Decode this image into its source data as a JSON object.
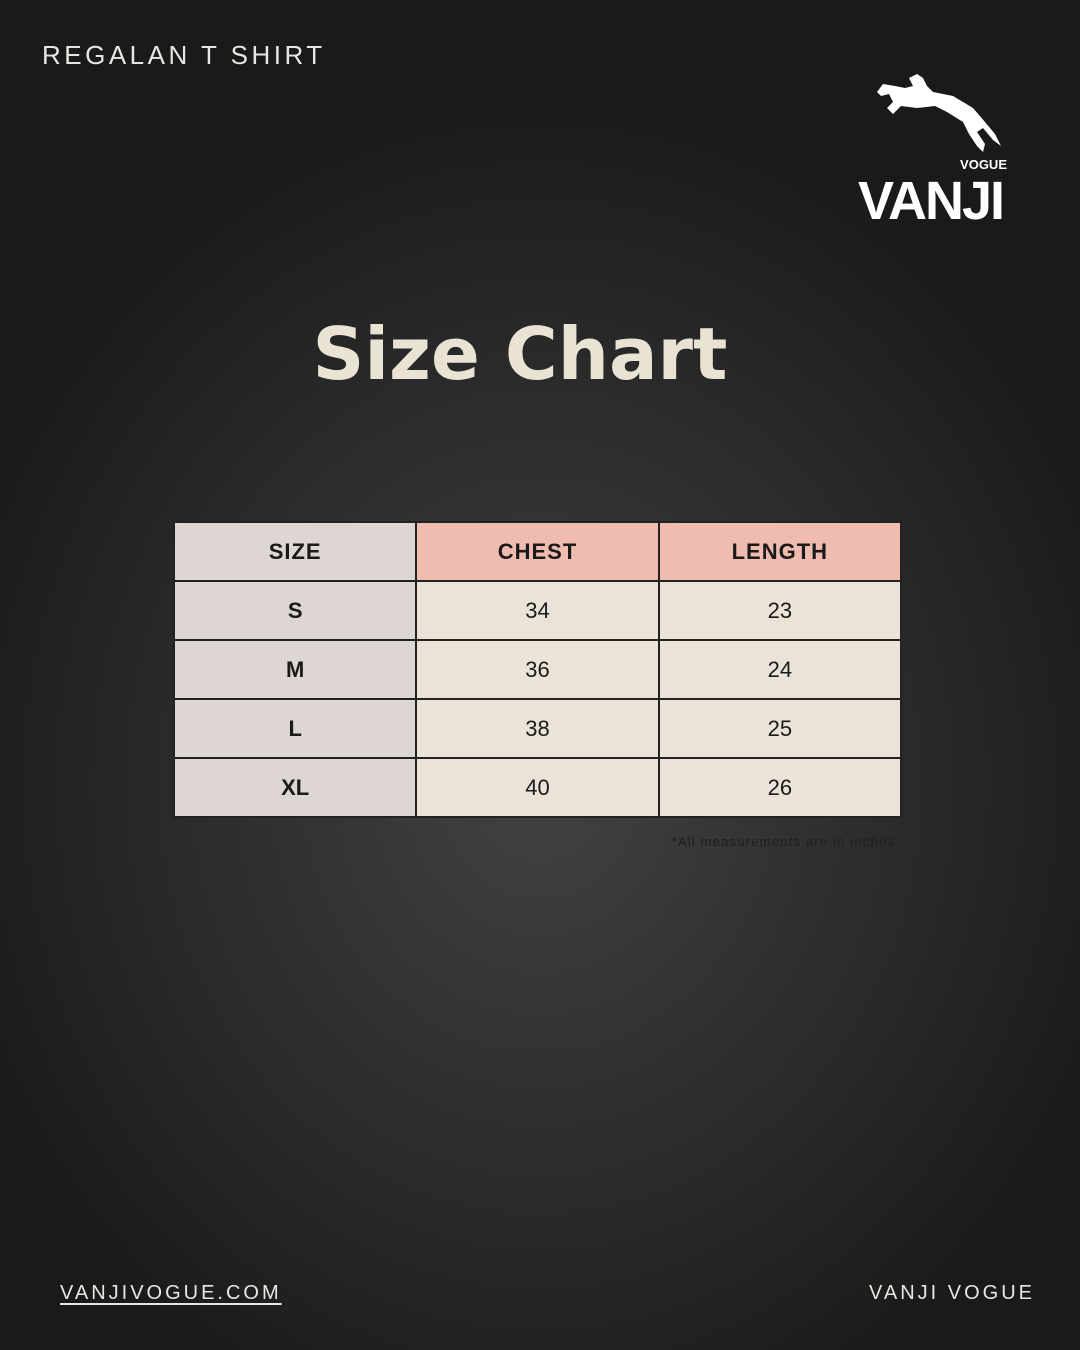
{
  "header": {
    "title": "REGALAN T SHIRT"
  },
  "logo": {
    "name": "VANJI",
    "sub": "VOGUE",
    "icon": "horse-jumper-icon"
  },
  "heading": "Size Chart",
  "table": {
    "headers": [
      "SIZE",
      "CHEST",
      "LENGTH"
    ],
    "rows": [
      [
        "S",
        "34",
        "23"
      ],
      [
        "M",
        "36",
        "24"
      ],
      [
        "L",
        "38",
        "25"
      ],
      [
        "XL",
        "40",
        "26"
      ]
    ]
  },
  "note": "*All measurements are in inches.",
  "footer": {
    "website": "VANJIVOGUE.COM",
    "brand": "VANJI VOGUE"
  },
  "colors": {
    "header_accent": "#efbcaf",
    "size_column": "#ddd6d2",
    "cell": "#ebe3d8",
    "heading": "#e8e3d3"
  }
}
